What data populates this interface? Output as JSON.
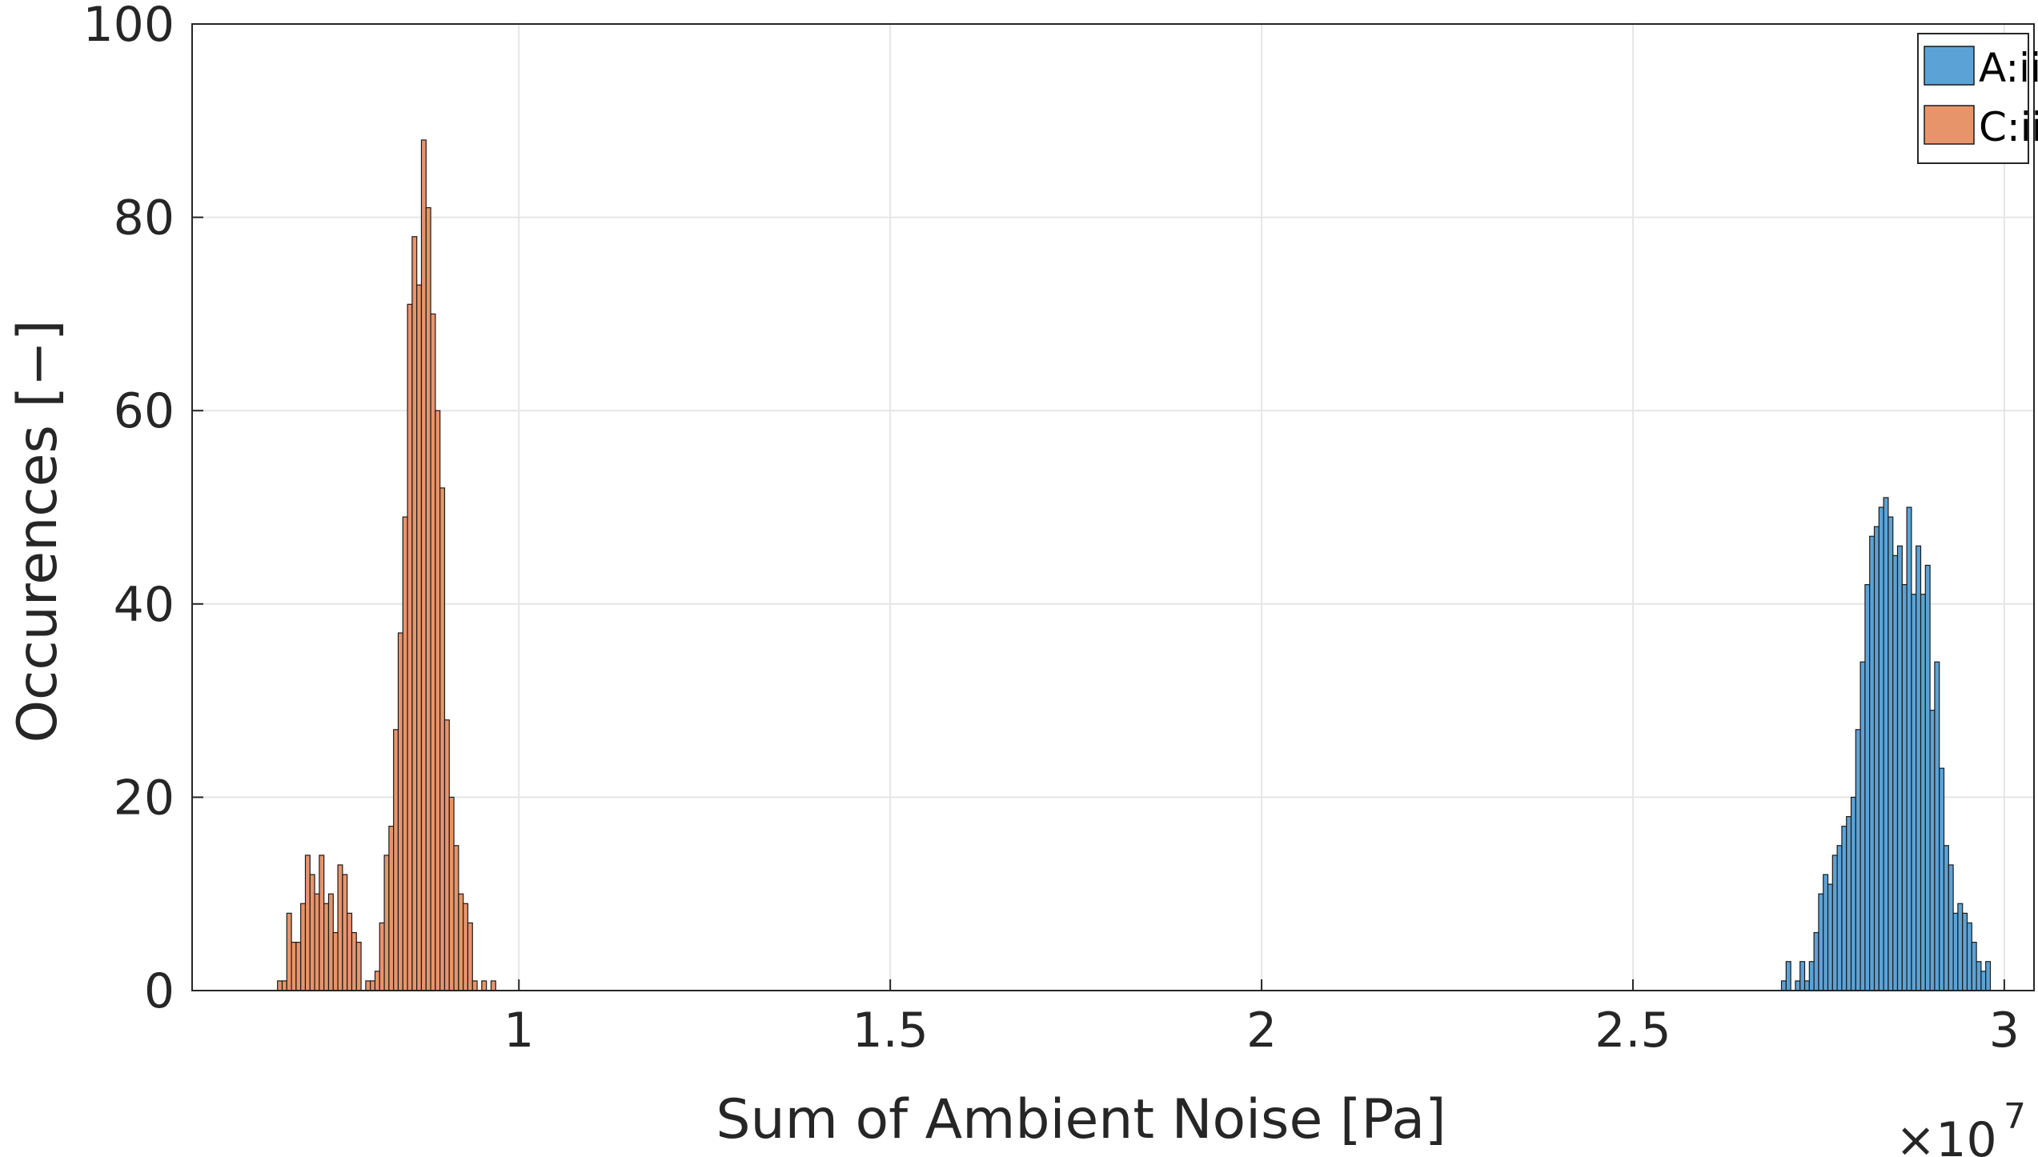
{
  "chart_data": {
    "type": "bar",
    "subtype": "histogram",
    "xlabel": "Sum of Ambient Noise [Pa]",
    "ylabel": "Occurences [−]",
    "x_multiplier": "×10",
    "x_multiplier_exponent": "7",
    "xlim": [
      0.56,
      3.04
    ],
    "ylim": [
      0,
      100
    ],
    "xticks": [
      1,
      1.5,
      2,
      2.5,
      3
    ],
    "xtick_labels": [
      "1",
      "1.5",
      "2",
      "2.5",
      "3"
    ],
    "yticks": [
      0,
      20,
      40,
      60,
      80,
      100
    ],
    "ytick_labels": [
      "0",
      "20",
      "40",
      "60",
      "80",
      "100"
    ],
    "grid": true,
    "legend_position": "top-right",
    "series": [
      {
        "name": "A:ii",
        "color": "#5BA3D6",
        "edge_color": "#1a1a1a",
        "bin_start": 2.7,
        "bin_width": 0.00625,
        "counts": [
          1,
          3,
          0,
          1,
          3,
          1,
          3,
          6,
          10,
          12,
          11,
          14,
          15,
          17,
          18,
          20,
          27,
          34,
          42,
          47,
          48,
          50,
          51,
          49,
          45,
          46,
          42,
          50,
          41,
          46,
          41,
          44,
          29,
          34,
          23,
          15,
          13,
          8,
          9,
          8,
          7,
          5,
          3,
          2,
          3
        ]
      },
      {
        "name": "C:ii",
        "color": "#E8946B",
        "edge_color": "#1a1a1a",
        "bin_start": 0.675,
        "bin_width": 0.00625,
        "counts": [
          1,
          1,
          8,
          5,
          5,
          9,
          14,
          12,
          10,
          14,
          9,
          10,
          6,
          13,
          12,
          8,
          6,
          5,
          0,
          1,
          1,
          2,
          7,
          14,
          17,
          27,
          37,
          49,
          71,
          78,
          73,
          88,
          81,
          70,
          60,
          52,
          28,
          20,
          15,
          10,
          9,
          7,
          1,
          0,
          1,
          0,
          1
        ]
      }
    ]
  }
}
